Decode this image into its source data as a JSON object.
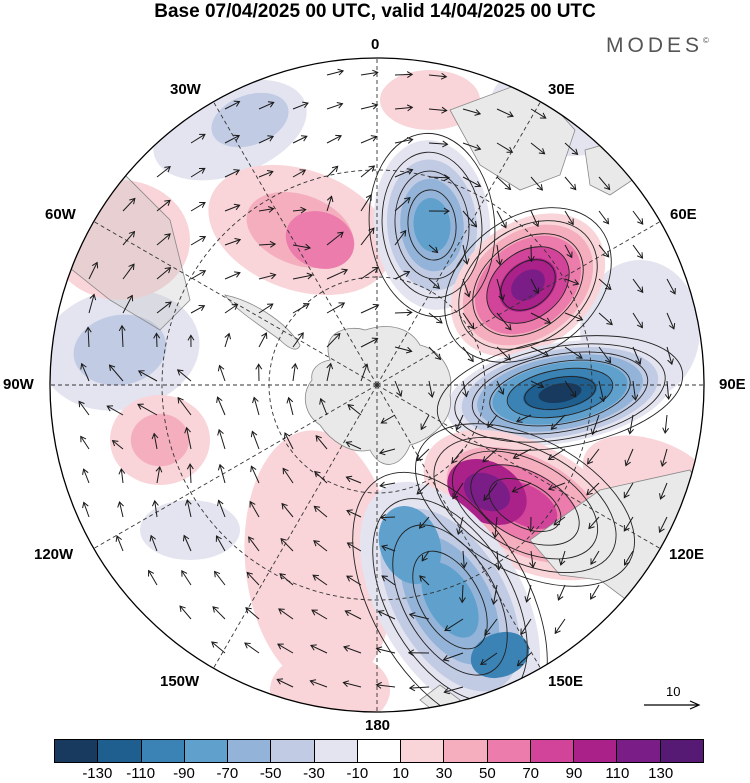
{
  "title": "Base 07/04/2025 00 UTC, valid 14/04/2025 00 UTC",
  "brand": "MODES",
  "brand_mark": "©",
  "longitude_labels": {
    "lon_0": "0",
    "lon_30e": "30E",
    "lon_60e": "60E",
    "lon_90e": "90E",
    "lon_120e": "120E",
    "lon_150e": "150E",
    "lon_180": "180",
    "lon_150w": "150W",
    "lon_120w": "120W",
    "lon_90w": "90W",
    "lon_60w": "60W",
    "lon_30w": "30W"
  },
  "reference_vector": {
    "label": "10"
  },
  "colorbar": {
    "ticks": [
      "-130",
      "-110",
      "-90",
      "-70",
      "-50",
      "-30",
      "-10",
      "10",
      "30",
      "50",
      "70",
      "90",
      "110",
      "130"
    ],
    "colors": [
      "#173a5e",
      "#1f5f8f",
      "#3b82b5",
      "#5fa0cc",
      "#93b4d8",
      "#c1cbe4",
      "#e4e4f0",
      "#ffffff",
      "#f9d4d8",
      "#f4aebd",
      "#eb7cac",
      "#d2449a",
      "#a92189",
      "#7a1d86",
      "#561a74"
    ]
  },
  "map_colors": {
    "land": "#e9e9e9",
    "coast": "#888888",
    "grid": "#333333",
    "arrow": "#1a1a1a"
  }
}
